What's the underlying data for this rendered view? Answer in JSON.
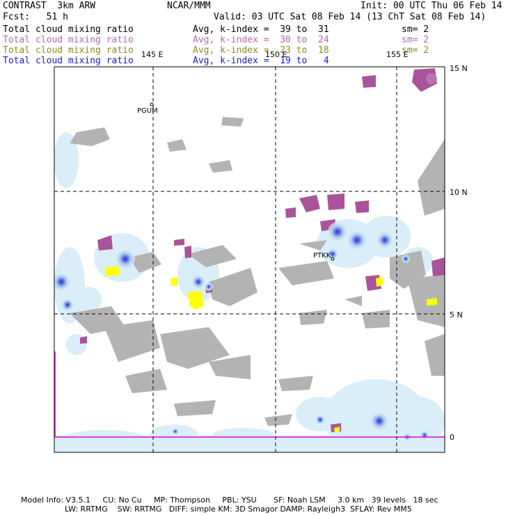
{
  "header": {
    "program": "CONTRAST  3km ARW",
    "center": "NCAR/MMM",
    "init": "Init: 00 UTC Thu 06 Feb 14",
    "fcst": "Fcst:   51 h",
    "valid": "Valid: 03 UTC Sat 08 Feb 14 (13 ChT Sat 08 Feb 14)"
  },
  "fields": [
    {
      "name": "Total cloud mixing ratio",
      "avg": "Avg, k-index =  39 to  31",
      "sm": "sm= 2",
      "color": "#000000"
    },
    {
      "name": "Total cloud mixing ratio",
      "avg": "Avg, k-index =  30 to  24",
      "sm": "sm= 2",
      "color": "#b566b5"
    },
    {
      "name": "Total cloud mixing ratio",
      "avg": "Avg, k-index =  23 to  18",
      "sm": "sm= 2",
      "color": "#8c8c1c"
    },
    {
      "name": "Total cloud mixing ratio",
      "avg": "Avg, k-index =  19 to   4",
      "sm": "",
      "color": "#1a1ad6"
    }
  ],
  "map": {
    "lon_labels": [
      "145 E",
      "150 E",
      "155 E"
    ],
    "lat_labels": [
      "15 N",
      "10 N",
      "5 N",
      "0"
    ],
    "stations": [
      "PGUM",
      "PTKK"
    ],
    "colors": {
      "land": "#b3b3b3",
      "cloud_light": "#d9eef8",
      "cloud_mid": "#a9c8ee",
      "cloud_deep": "#1f2fd6",
      "upper_cloud": "#a9549a",
      "mid_cloud": "#ffff00",
      "boundary": "#e000e0"
    }
  },
  "footer": {
    "line1": "Model Info: V3.5.1     CU: No Cu     MP: Thompson     PBL: YSU       SF: Noah LSM     3.0 km   39 levels   18 sec",
    "line2": "LW: RRTMG    SW: RRTMG   DIFF: simple KM: 3D Smagor DAMP: Rayleigh3  SFLAY: Rev MM5"
  }
}
